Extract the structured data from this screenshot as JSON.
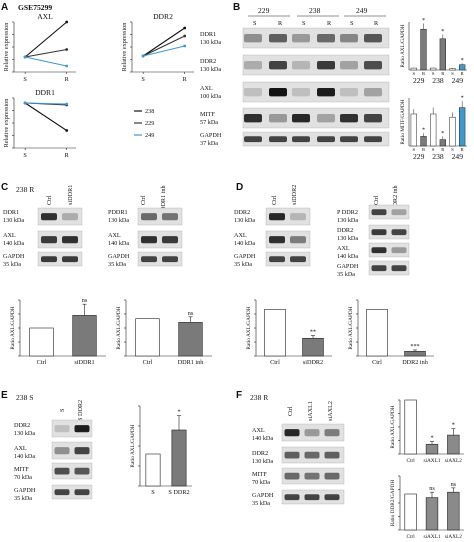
{
  "colors": {
    "c238": "#111111",
    "c229": "#333333",
    "c249": "#3b9ad6",
    "green": "#4a8f3a",
    "blue": "#1c3fc7",
    "red": "#d0161a",
    "grey": "#8a8a8a",
    "teal": "#3a8b95",
    "bar_grey": "#7a7a7a",
    "bar_dark": "#2a2a2a"
  },
  "panel_A": {
    "letter": "A",
    "dataset": "GSE75299",
    "legend": [
      "238",
      "229",
      "249"
    ],
    "ylabel": "Relative expression",
    "charts": [
      {
        "title": "AXL",
        "categories": [
          "S",
          "R"
        ]
      },
      {
        "title": "DDR2",
        "categories": [
          "S",
          "R"
        ]
      },
      {
        "title": "DDR1",
        "categories": [
          "S",
          "R"
        ]
      }
    ]
  },
  "panel_B": {
    "letter": "B",
    "lines": [
      {
        "name": "229",
        "color": "#111111"
      },
      {
        "name": "238",
        "color": "#111111"
      },
      {
        "name": "249",
        "color": "#3b9ad6"
      }
    ],
    "lanes": [
      "S",
      "R",
      "S",
      "R",
      "S",
      "R"
    ],
    "blot_labels": [
      [
        "DDR1",
        "130 kDa"
      ],
      [
        "DDR2",
        "130 kDa"
      ],
      [
        "AXL",
        "100 kDa"
      ],
      [
        "MITF",
        "57 kDa"
      ],
      [
        "GAPDH",
        "37 kDa"
      ]
    ],
    "charts": [
      {
        "ylabel": "Ratio AXL/GAPDH",
        "groups": [
          "229",
          "238",
          "249"
        ],
        "lanes": [
          "S",
          "R"
        ]
      },
      {
        "ylabel": "Ratio MITF/GAPDH",
        "groups": [
          "229",
          "238",
          "249"
        ],
        "lanes": [
          "S",
          "R"
        ]
      }
    ]
  },
  "panel_C": {
    "letter": "C",
    "cell": "238 R",
    "blot1": {
      "lanes": [
        "Ctrl",
        "siDDR1"
      ],
      "labels": [
        [
          "DDR1",
          "130 kDa"
        ],
        [
          "AXL",
          "140 kDa"
        ],
        [
          "GAPDH",
          "35 kDa"
        ]
      ]
    },
    "blot2": {
      "lanes": [
        "Ctrl",
        "DDR1 inh"
      ],
      "labels": [
        [
          "PDDR1",
          "130 kDa"
        ],
        [
          "AXL",
          "140 kDa"
        ],
        [
          "GAPDH",
          "35 kDa"
        ]
      ]
    },
    "chart1": {
      "ylabel": "Ratio AXL/GAPDH",
      "categories": [
        "Ctrl",
        "siDDR1"
      ],
      "sig": "ns"
    },
    "chart2": {
      "ylabel": "Ratio AXL/GAPDH",
      "categories": [
        "Ctrl",
        "DDR1 inh"
      ],
      "sig": "ns"
    }
  },
  "panel_D": {
    "letter": "D",
    "blot1": {
      "lanes": [
        "Ctrl",
        "siDDR2"
      ],
      "labels": [
        [
          "DDR2",
          "130 kDa"
        ],
        [
          "AXL",
          "140 kDa"
        ],
        [
          "GAPDH",
          "35 kDa"
        ]
      ]
    },
    "blot2": {
      "lanes": [
        "Ctrl",
        "DDR2 inh"
      ],
      "labels": [
        [
          "P DDR2",
          "130 kDa"
        ],
        [
          "DDR2",
          "130 kDa"
        ],
        [
          "AXL",
          "140 kDa"
        ],
        [
          "GAPDH",
          "35 kDa"
        ]
      ]
    },
    "chart1": {
      "ylabel": "Ratio AXL/GAPDH",
      "categories": [
        "Ctrl",
        "siDDR2"
      ],
      "sig": "**"
    },
    "chart2": {
      "ylabel": "Ratio AXL/GAPDH",
      "categories": [
        "Ctrl",
        "DDR2 inh"
      ],
      "sig": "***"
    }
  },
  "panel_E": {
    "letter": "E",
    "cell": "238 S",
    "blot": {
      "lanes": [
        "S",
        "S DDR2"
      ],
      "labels": [
        [
          "DDR2",
          "130 kDa"
        ],
        [
          "AXL",
          "140 kDa"
        ],
        [
          "MITF",
          "70 kDa"
        ],
        [
          "GAPDH",
          "35 kDa"
        ]
      ]
    },
    "chart": {
      "ylabel": "Ratio AXL/GAPDH",
      "categories": [
        "S",
        "S DDR2"
      ],
      "sig": "*"
    }
  },
  "panel_F": {
    "letter": "F",
    "cell": "238 R",
    "blot": {
      "lanes": [
        "Ctrl",
        "siAXL1",
        "siAXL2"
      ],
      "labels": [
        [
          "AXL",
          "140 kDa"
        ],
        [
          "DDR2",
          "130 kDa"
        ],
        [
          "MITF",
          "70 kDa"
        ],
        [
          "GAPDH",
          "35 kDa"
        ]
      ]
    },
    "chart1": {
      "ylabel": "Ratio AXL/GAPDH",
      "categories": [
        "Ctrl",
        "siAXL1",
        "siAXL2"
      ],
      "sig": [
        "",
        "*",
        "*"
      ]
    },
    "chart2": {
      "ylabel": "Ratio DDR2/GAPDH",
      "categories": [
        "Ctrl",
        "siAXL1",
        "siAXL2"
      ],
      "sig": [
        "",
        "ns",
        "ns"
      ]
    }
  },
  "chart_data": [
    {
      "type": "line",
      "panel": "A",
      "title": "AXL",
      "categories": [
        "S",
        "R"
      ],
      "ylabel": "Relative expression",
      "series": [
        {
          "name": "238",
          "values": [
            0.3,
            1.0
          ]
        },
        {
          "name": "229",
          "values": [
            0.3,
            0.45
          ]
        },
        {
          "name": "249",
          "values": [
            0.3,
            0.12
          ]
        }
      ]
    },
    {
      "type": "line",
      "panel": "A",
      "title": "DDR2",
      "categories": [
        "S",
        "R"
      ],
      "ylabel": "Relative expression",
      "series": [
        {
          "name": "238",
          "values": [
            0.32,
            0.88
          ]
        },
        {
          "name": "229",
          "values": [
            0.32,
            0.72
          ]
        },
        {
          "name": "249",
          "values": [
            0.32,
            0.52
          ]
        }
      ]
    },
    {
      "type": "line",
      "panel": "A",
      "title": "DDR1",
      "categories": [
        "S",
        "R"
      ],
      "ylabel": "Relative expression",
      "series": [
        {
          "name": "238",
          "values": [
            0.9,
            0.35
          ]
        },
        {
          "name": "229",
          "values": [
            0.9,
            0.86
          ]
        },
        {
          "name": "249",
          "values": [
            0.9,
            0.88
          ]
        }
      ]
    },
    {
      "type": "bar",
      "panel": "B",
      "ylabel": "Ratio AXL/GAPDH",
      "categories": [
        "229 S",
        "229 R",
        "238 S",
        "238 R",
        "249 S",
        "249 R"
      ],
      "values": [
        0.4,
        8.5,
        0.4,
        6.5,
        0.3,
        1.1
      ],
      "errors": [
        0.1,
        1.2,
        0.1,
        0.9,
        0.1,
        0.3
      ],
      "ylim": [
        0,
        10
      ]
    },
    {
      "type": "bar",
      "panel": "B",
      "ylabel": "Ratio MITF/GAPDH",
      "categories": [
        "229 S",
        "229 R",
        "238 S",
        "238 R",
        "249 S",
        "249 R"
      ],
      "values": [
        1.0,
        0.3,
        1.0,
        0.2,
        0.9,
        1.2
      ],
      "errors": [
        0.15,
        0.1,
        0.2,
        0.1,
        0.15,
        0.2
      ],
      "ylim": [
        0,
        1.5
      ]
    },
    {
      "type": "bar",
      "panel": "C",
      "ylabel": "Ratio AXL/GAPDH",
      "categories": [
        "Ctrl",
        "siDDR1"
      ],
      "values": [
        1.0,
        1.45
      ],
      "errors": [
        0,
        0.4
      ],
      "ylim": [
        0,
        2
      ]
    },
    {
      "type": "bar",
      "panel": "C",
      "ylabel": "Ratio AXL/GAPDH",
      "categories": [
        "Ctrl",
        "DDR1 inh"
      ],
      "values": [
        1.0,
        0.9
      ],
      "errors": [
        0,
        0.15
      ],
      "ylim": [
        0,
        1.5
      ]
    },
    {
      "type": "bar",
      "panel": "D",
      "ylabel": "Ratio AXL/GAPDH",
      "categories": [
        "Ctrl",
        "siDDR2"
      ],
      "values": [
        1.0,
        0.38
      ],
      "errors": [
        0,
        0.06
      ],
      "ylim": [
        0,
        1.2
      ]
    },
    {
      "type": "bar",
      "panel": "D",
      "ylabel": "Ratio AXL/GAPDH",
      "categories": [
        "Ctrl",
        "DDR2 inh"
      ],
      "values": [
        1.0,
        0.1
      ],
      "errors": [
        0,
        0.03
      ],
      "ylim": [
        0,
        1.2
      ]
    },
    {
      "type": "bar",
      "panel": "E",
      "ylabel": "Ratio AXL/GAPDH",
      "categories": [
        "S",
        "S DDR2"
      ],
      "values": [
        1.0,
        1.75
      ],
      "errors": [
        0,
        0.45
      ],
      "ylim": [
        0,
        2.5
      ]
    },
    {
      "type": "bar",
      "panel": "F",
      "ylabel": "Ratio AXL/GAPDH",
      "categories": [
        "Ctrl",
        "siAXL1",
        "siAXL2"
      ],
      "values": [
        1.0,
        0.18,
        0.35
      ],
      "errors": [
        0,
        0.05,
        0.12
      ],
      "ylim": [
        0,
        1.0
      ]
    },
    {
      "type": "bar",
      "panel": "F",
      "ylabel": "Ratio DDR2/GAPDH",
      "categories": [
        "Ctrl",
        "siAXL1",
        "siAXL2"
      ],
      "values": [
        1.0,
        0.9,
        1.05
      ],
      "errors": [
        0,
        0.15,
        0.12
      ],
      "ylim": [
        0,
        1.5
      ]
    }
  ]
}
